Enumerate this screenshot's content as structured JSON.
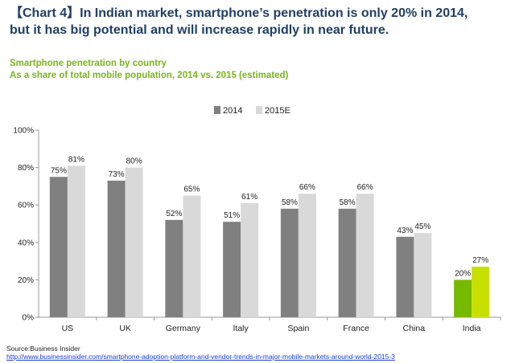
{
  "header": {
    "line1": "【Chart 4】In Indian market, smartphone’s penetration is only 20% in 2014,",
    "line2": "but it has big potential and will increase rapidly in near future."
  },
  "subtitle": {
    "line1": "Smartphone penetration by country",
    "line2": "As a share of total mobile population, 2014 vs. 2015 (estimated)"
  },
  "footer": {
    "source": "Source:Business Insider",
    "url": "http://www.businessinsider.com/smartphone-adoption-platform-and-vendor-trends-in-major-mobile-markets-around-world-2015-3"
  },
  "colors": {
    "series_2014": "#808080",
    "series_2015": "#d9d9d9",
    "highlight_2014": "#77b800",
    "highlight_2015": "#c8e000",
    "header": "#1f3f66",
    "subtitle": "#7ab51d"
  },
  "chart_data": {
    "type": "bar",
    "title": "Smartphone penetration by country",
    "categories": [
      "US",
      "UK",
      "Germany",
      "Italy",
      "Spain",
      "France",
      "China",
      "India"
    ],
    "series": [
      {
        "name": "2014",
        "values": [
          75,
          73,
          52,
          51,
          58,
          58,
          43,
          20
        ]
      },
      {
        "name": "2015E",
        "values": [
          81,
          80,
          65,
          61,
          66,
          66,
          45,
          27
        ]
      }
    ],
    "value_labels": [
      [
        "75%",
        "73%",
        "52%",
        "51%",
        "58%",
        "58%",
        "43%",
        "20%"
      ],
      [
        "81%",
        "80%",
        "65%",
        "61%",
        "66%",
        "66%",
        "45%",
        "27%"
      ]
    ],
    "highlight_category": "India",
    "ylim": [
      0,
      100
    ],
    "yticks": [
      0,
      20,
      40,
      60,
      80,
      100
    ],
    "ytick_labels": [
      "0%",
      "20%",
      "40%",
      "60%",
      "80%",
      "100%"
    ],
    "legend": [
      "2014",
      "2015E"
    ],
    "legend_position": "top",
    "xlabel": "",
    "ylabel": ""
  }
}
